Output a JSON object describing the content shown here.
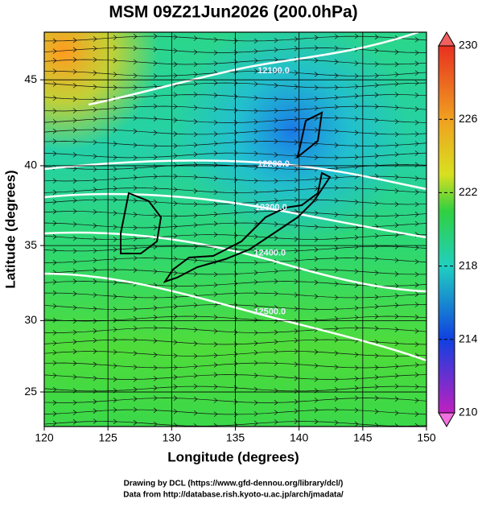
{
  "title": "MSM 09Z21Jun2026 (200.0hPa)",
  "map": {
    "x_label": "Longitude (degrees)",
    "y_label": "Latitude  (degrees)",
    "xlim": [
      120,
      150
    ],
    "ylim": [
      22.5,
      47.6
    ],
    "xticks": [
      120,
      125,
      130,
      135,
      140,
      145,
      150
    ],
    "yticks": [
      25,
      30,
      35,
      40,
      45
    ],
    "contour_labels": [
      {
        "text": "12100.0",
        "lon": 138,
        "lat": 45.5
      },
      {
        "text": "12200.0",
        "lon": 138,
        "lat": 40.1
      },
      {
        "text": "12300.0",
        "lon": 137.8,
        "lat": 37.4
      },
      {
        "text": "12400.0",
        "lon": 137.7,
        "lat": 34.5
      },
      {
        "text": "12500.0",
        "lon": 137.7,
        "lat": 30.6
      }
    ]
  },
  "colorbar": {
    "lim": [
      210,
      230
    ],
    "ticks": [
      210,
      214,
      218,
      222,
      226,
      230
    ]
  },
  "footer": [
    "Drawing by DCL (https://www.gfd-dennou.org/library/dcl/)",
    "Data from http://database.rish.kyoto-u.ac.jp/arch/jmadata/"
  ]
}
